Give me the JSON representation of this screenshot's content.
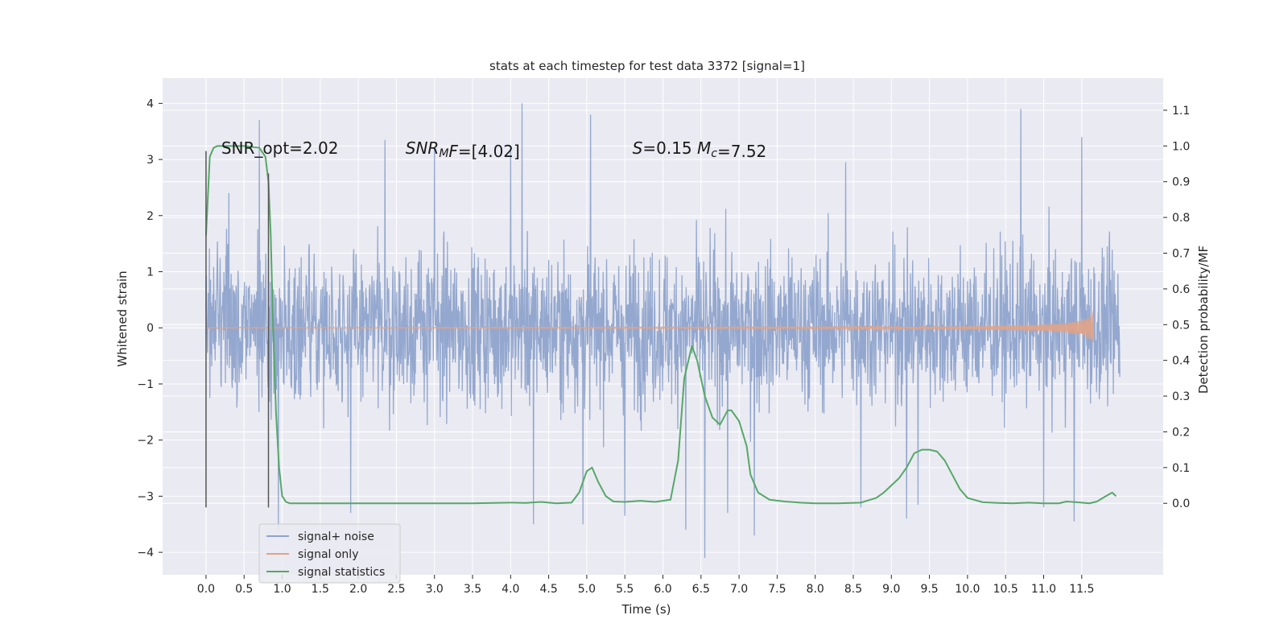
{
  "chart_data": {
    "type": "line",
    "title": "stats at each timestep for test data 3372 [signal=1]",
    "xlabel": "Time (s)",
    "ylabel_left": "Whitened strain",
    "ylabel_right": "Detection probability/MF",
    "xlim": [
      -0.57,
      12.57
    ],
    "ylim_left": [
      -4.4,
      4.45
    ],
    "ylim_right": [
      -0.2,
      1.19
    ],
    "x_ticks": [
      0.0,
      0.5,
      1.0,
      1.5,
      2.0,
      2.5,
      3.0,
      3.5,
      4.0,
      4.5,
      5.0,
      5.5,
      6.0,
      6.5,
      7.0,
      7.5,
      8.0,
      8.5,
      9.0,
      9.5,
      10.0,
      10.5,
      11.0,
      11.5
    ],
    "x_tick_labels": [
      "0.0",
      "0.5",
      "1.0",
      "1.5",
      "2.0",
      "2.5",
      "3.0",
      "3.5",
      "4.0",
      "4.5",
      "5.0",
      "5.5",
      "6.0",
      "6.5",
      "7.0",
      "7.5",
      "8.0",
      "8.5",
      "9.0",
      "9.5",
      "10.0",
      "10.5",
      "11.0",
      "11.5"
    ],
    "y_left_ticks": [
      4,
      3,
      2,
      1,
      0,
      -1,
      -2,
      -3,
      -4
    ],
    "y_left_tick_labels": [
      "4",
      "3",
      "2",
      "1",
      "0",
      "−1",
      "−2",
      "−3",
      "−4"
    ],
    "y_right_ticks": [
      1.1,
      1.0,
      0.9,
      0.8,
      0.7,
      0.6,
      0.5,
      0.4,
      0.3,
      0.2,
      0.1,
      0.0
    ],
    "y_right_tick_labels": [
      "1.1",
      "1.0",
      "0.9",
      "0.8",
      "0.7",
      "0.6",
      "0.5",
      "0.4",
      "0.3",
      "0.2",
      "0.1",
      "0.0"
    ],
    "grid": true,
    "legend_position": "lower-left",
    "series": [
      {
        "name": "signal+ noise",
        "axis": "left",
        "color": "#8fa4cc",
        "x_range": [
          0.0,
          12.0
        ],
        "envelope_peaks": [
          [
            0.3,
            2.4
          ],
          [
            0.7,
            3.7
          ],
          [
            0.95,
            -3.6
          ],
          [
            1.9,
            -3.3
          ],
          [
            2.35,
            3.35
          ],
          [
            3.0,
            3.2
          ],
          [
            4.0,
            3.2
          ],
          [
            4.15,
            4.0
          ],
          [
            4.3,
            -3.5
          ],
          [
            5.05,
            3.8
          ],
          [
            4.95,
            -3.5
          ],
          [
            5.5,
            -3.35
          ],
          [
            6.3,
            -3.6
          ],
          [
            6.55,
            -4.1
          ],
          [
            6.85,
            -3.3
          ],
          [
            7.2,
            -3.7
          ],
          [
            8.4,
            2.95
          ],
          [
            8.6,
            -3.2
          ],
          [
            9.2,
            -3.4
          ],
          [
            9.35,
            -3.15
          ],
          [
            10.7,
            3.9
          ],
          [
            11.0,
            -3.2
          ],
          [
            11.4,
            -3.45
          ],
          [
            11.5,
            3.4
          ]
        ]
      },
      {
        "name": "signal only",
        "axis": "left",
        "color": "#e1a386",
        "x": [
          0.0,
          8.0,
          9.0,
          10.0,
          10.5,
          11.0,
          11.3,
          11.5,
          11.6,
          11.65
        ],
        "amplitude": [
          0.005,
          0.01,
          0.015,
          0.025,
          0.04,
          0.06,
          0.09,
          0.13,
          0.2,
          0.28
        ]
      },
      {
        "name": "signal statistics",
        "axis": "right",
        "color": "#55a868",
        "x": [
          0.0,
          0.05,
          0.1,
          0.15,
          0.2,
          0.3,
          0.5,
          0.7,
          0.78,
          0.82,
          0.85,
          0.88,
          0.92,
          0.96,
          1.0,
          1.05,
          1.1,
          1.5,
          2.0,
          3.0,
          3.5,
          4.0,
          4.2,
          4.4,
          4.6,
          4.8,
          4.9,
          5.0,
          5.07,
          5.15,
          5.25,
          5.35,
          5.5,
          5.7,
          5.9,
          6.1,
          6.2,
          6.28,
          6.38,
          6.45,
          6.55,
          6.65,
          6.75,
          6.85,
          6.9,
          7.0,
          7.1,
          7.15,
          7.25,
          7.4,
          7.6,
          7.8,
          8.0,
          8.3,
          8.6,
          8.8,
          8.9,
          9.0,
          9.1,
          9.2,
          9.3,
          9.4,
          9.5,
          9.6,
          9.7,
          9.8,
          9.9,
          10.0,
          10.2,
          10.4,
          10.6,
          10.8,
          11.0,
          11.2,
          11.3,
          11.5,
          11.6,
          11.7,
          11.8,
          11.9,
          11.95
        ],
        "values": [
          0.75,
          0.97,
          0.995,
          1.0,
          1.0,
          1.0,
          1.0,
          0.995,
          0.97,
          0.9,
          0.75,
          0.5,
          0.25,
          0.1,
          0.02,
          0.004,
          0.0,
          0.0,
          0.0,
          0.0,
          0.0,
          0.002,
          0.001,
          0.004,
          0.0,
          0.002,
          0.03,
          0.09,
          0.1,
          0.06,
          0.02,
          0.005,
          0.004,
          0.007,
          0.004,
          0.01,
          0.12,
          0.35,
          0.44,
          0.4,
          0.3,
          0.24,
          0.22,
          0.26,
          0.26,
          0.23,
          0.16,
          0.08,
          0.03,
          0.01,
          0.005,
          0.002,
          0.0,
          0.0,
          0.002,
          0.015,
          0.03,
          0.05,
          0.07,
          0.1,
          0.14,
          0.15,
          0.15,
          0.145,
          0.12,
          0.08,
          0.04,
          0.015,
          0.003,
          0.001,
          0.0,
          0.002,
          0.0,
          0.0,
          0.005,
          0.002,
          0.0,
          0.005,
          0.018,
          0.03,
          0.02
        ]
      }
    ],
    "vertical_lines": [
      {
        "x": 0.0,
        "y_range": [
          -3.2,
          3.15
        ],
        "color": "#555555"
      },
      {
        "x": 0.82,
        "y_range": [
          -3.2,
          2.75
        ],
        "color": "#555555"
      }
    ],
    "annotations": [
      {
        "id": "snr-opt",
        "text": "SNR_opt=2.02",
        "x": 0.2,
        "y": 3.2
      },
      {
        "id": "snr-mf",
        "parts": [
          {
            "t": "SNR",
            "style": "italic"
          },
          {
            "t": "M",
            "style": "italic-sub"
          },
          {
            "t": "F",
            "style": "italic"
          },
          {
            "t": "=[4.02]",
            "style": "normal"
          }
        ],
        "x": 2.62,
        "y": 3.2
      },
      {
        "id": "s-mc",
        "parts": [
          {
            "t": "S",
            "style": "italic"
          },
          {
            "t": "=0.15   ",
            "style": "normal"
          },
          {
            "t": "M",
            "style": "italic"
          },
          {
            "t": "c",
            "style": "italic-sub"
          },
          {
            "t": "=7.52",
            "style": "normal"
          }
        ],
        "x": 5.6,
        "y": 3.2
      }
    ]
  }
}
